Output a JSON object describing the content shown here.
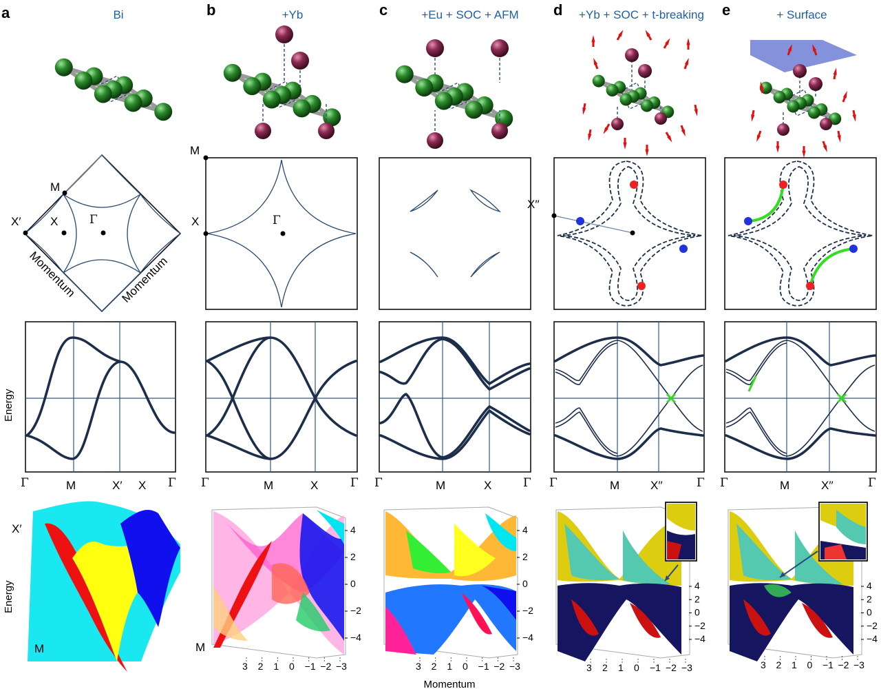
{
  "panels": [
    {
      "letter": "a",
      "title": "Bi"
    },
    {
      "letter": "b",
      "title": "+Yb"
    },
    {
      "letter": "c",
      "title": "+Eu + SOC + AFM"
    },
    {
      "letter": "d",
      "title": "+Yb + SOC + t-breaking"
    },
    {
      "letter": "e",
      "title": "+ Surface"
    }
  ],
  "bz_labels": {
    "a": {
      "M": "M",
      "X": "X",
      "Xp": "X′",
      "Gamma": "Γ",
      "axis1": "Momentum",
      "axis2": "Momentum"
    },
    "b": {
      "M": "M",
      "X": "X",
      "Gamma": "Γ"
    },
    "d": {
      "X2": "X′′"
    }
  },
  "band_xlabels": {
    "a": [
      "Γ",
      "M",
      "X′",
      "X",
      "Γ"
    ],
    "b": [
      "Γ",
      "M",
      "X",
      "Γ"
    ],
    "c": [
      "Γ",
      "M",
      "X",
      "Γ"
    ],
    "d": [
      "Γ",
      "M",
      "X′′",
      "Γ"
    ],
    "e": [
      "Γ",
      "M",
      "X′′",
      "Γ"
    ]
  },
  "energy_label": "Energy",
  "surface_3d": {
    "a_labels": {
      "Xp": "X′",
      "M": "M",
      "energy": "Energy"
    },
    "b_M": "M",
    "z_ticks": [
      "4",
      "2",
      "0",
      "−2",
      "−4"
    ],
    "x_ticks": [
      "3",
      "2",
      "1",
      "0",
      "−1",
      "−2",
      "−3"
    ],
    "momentum_label": "Momentum"
  },
  "colors": {
    "bi_atom": "#1f6b1f",
    "rare_earth_atom": "#6e1f3f",
    "band_line": "#1c2e4a",
    "title_blue": "#1f5fa0",
    "node_red": "#ee2222",
    "node_blue": "#2233dd",
    "arc_green": "#33dd22"
  }
}
